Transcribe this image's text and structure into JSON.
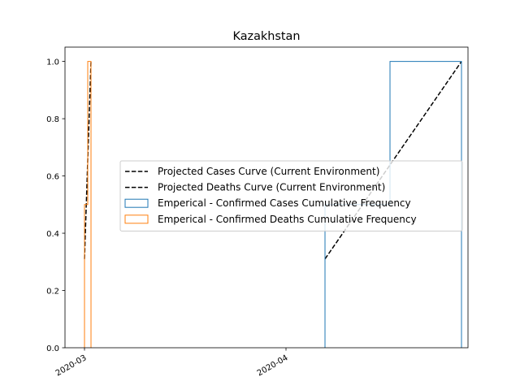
{
  "chart_data": {
    "type": "line",
    "title": "Kazakhstan",
    "xlabel": "",
    "ylabel": "",
    "x_axis": {
      "type": "date",
      "range": [
        "2020-02-27",
        "2020-04-29"
      ],
      "ticks": [
        {
          "value": "2020-03-01",
          "label": "2020-03"
        },
        {
          "value": "2020-04-01",
          "label": "2020-04"
        }
      ]
    },
    "y_axis": {
      "range": [
        0,
        1.05
      ],
      "ticks": [
        {
          "value": 0.0,
          "label": "0.0"
        },
        {
          "value": 0.2,
          "label": "0.2"
        },
        {
          "value": 0.4,
          "label": "0.4"
        },
        {
          "value": 0.6,
          "label": "0.6"
        },
        {
          "value": 0.8,
          "label": "0.8"
        },
        {
          "value": 1.0,
          "label": "1.0"
        }
      ]
    },
    "grid": false,
    "legend_position": "center-right",
    "series": [
      {
        "name": "Projected Cases Curve (Current Environment)",
        "kind": "line",
        "style": "dashed",
        "color": "#000000",
        "points": [
          {
            "x": "2020-04-07",
            "y": 0.31
          },
          {
            "x": "2020-04-28",
            "y": 1.0
          }
        ]
      },
      {
        "name": "Projected Deaths Curve (Current Environment)",
        "kind": "line",
        "style": "dashed",
        "color": "#000000",
        "points": [
          {
            "x": "2020-03-01",
            "y": 0.31
          },
          {
            "x": "2020-03-02",
            "y": 1.0
          }
        ]
      },
      {
        "name": "Emperical - Confirmed Cases Cumulative Frequency",
        "kind": "step-histogram",
        "color": "#1f77b4",
        "points": [
          {
            "x": "2020-04-07",
            "y": 0.0
          },
          {
            "x": "2020-04-07",
            "y": 0.5
          },
          {
            "x": "2020-04-17",
            "y": 0.5
          },
          {
            "x": "2020-04-17",
            "y": 1.0
          },
          {
            "x": "2020-04-28",
            "y": 1.0
          },
          {
            "x": "2020-04-28",
            "y": 0.0
          }
        ]
      },
      {
        "name": "Emperical - Confirmed Deaths Cumulative Frequency",
        "kind": "step-histogram",
        "color": "#ff7f0e",
        "points": [
          {
            "x": "2020-03-01",
            "y": 0.0
          },
          {
            "x": "2020-03-01",
            "y": 0.5
          },
          {
            "x": "2020-03-01T12:00",
            "y": 0.5
          },
          {
            "x": "2020-03-01T12:00",
            "y": 1.0
          },
          {
            "x": "2020-03-02",
            "y": 1.0
          },
          {
            "x": "2020-03-02",
            "y": 0.0
          }
        ]
      }
    ],
    "legend_order": [
      0,
      1,
      2,
      3
    ]
  }
}
